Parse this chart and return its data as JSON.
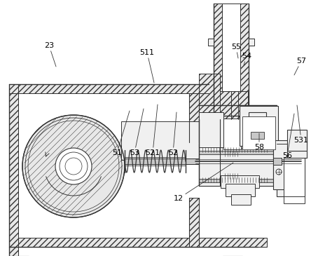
{
  "bg_color": "#ffffff",
  "line_color": "#333333",
  "figsize": [
    4.44,
    3.65
  ],
  "dpi": 100,
  "wall_fill": "#e8e8e8",
  "hatch_fill": "#d8d8d8",
  "part_fill": "#f0f0f0",
  "dark_fill": "#c8c8c8"
}
